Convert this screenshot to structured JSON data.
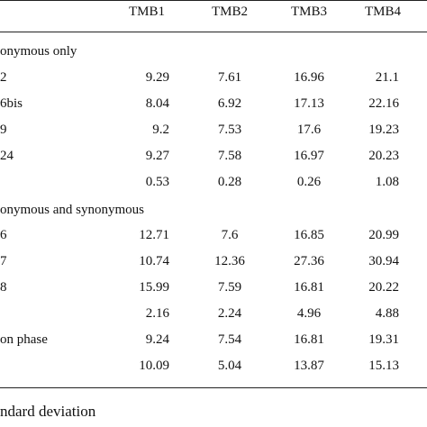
{
  "table": {
    "header": [
      "TMB1",
      "TMB2",
      "TMB3",
      "TMB4"
    ],
    "rows": [
      {
        "label": "onymous only"
      },
      {
        "label": "2",
        "cells": [
          "9.29",
          "7.61",
          "16.96",
          "21.1"
        ]
      },
      {
        "label": "6bis",
        "cells": [
          "8.04",
          "6.92",
          "17.13",
          "22.16"
        ]
      },
      {
        "label": "9",
        "cells": [
          "9.2",
          "7.53",
          "17.6",
          "19.23"
        ]
      },
      {
        "label": "24",
        "cells": [
          "9.27",
          "7.58",
          "16.97",
          "20.23"
        ]
      },
      {
        "label": null,
        "cells": [
          "0.53",
          "0.28",
          "0.26",
          "1.08"
        ]
      },
      {
        "label": "onymous and synonymous"
      },
      {
        "label": "6",
        "cells": [
          "12.71",
          "7.6",
          "16.85",
          "20.99"
        ]
      },
      {
        "label": "7",
        "cells": [
          "10.74",
          "12.36",
          "27.36",
          "30.94"
        ]
      },
      {
        "label": "8",
        "cells": [
          "15.99",
          "7.59",
          "16.81",
          "20.22"
        ]
      },
      {
        "label": null,
        "cells": [
          "2.16",
          "2.24",
          "4.96",
          "4.88"
        ]
      },
      {
        "label": "on phase",
        "cells": [
          "9.24",
          "7.54",
          "16.81",
          "19.31"
        ]
      },
      {
        "label": null,
        "cells": [
          "10.09",
          "5.04",
          "13.87",
          "15.13"
        ]
      }
    ],
    "footnote": "ndard deviation"
  }
}
